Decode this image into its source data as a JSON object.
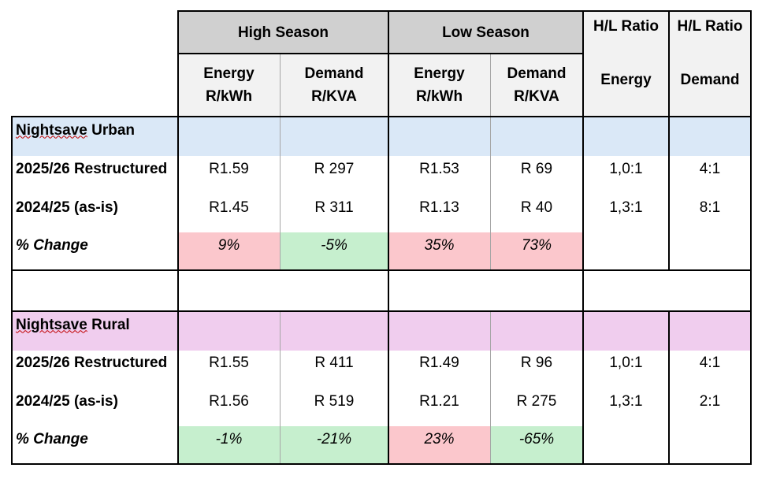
{
  "header": {
    "high_season": "High Season",
    "low_season": "Low Season",
    "hl_ratio_energy_top": "H/L Ratio",
    "hl_ratio_demand_top": "H/L Ratio",
    "energy_line1": "Energy",
    "energy_line2": "R/kWh",
    "demand_line1": "Demand",
    "demand_line2": "R/KVA",
    "ratio_energy": "Energy",
    "ratio_demand": "Demand"
  },
  "sections": [
    {
      "title_a": "Nightsave",
      "title_b": " Urban",
      "rows": [
        {
          "label": "2025/26 Restructured",
          "high_energy": "R1.59",
          "high_demand": "R 297",
          "low_energy": "R1.53",
          "low_demand": "R 69",
          "ratio_energy": "1,0:1",
          "ratio_demand": "4:1"
        },
        {
          "label": "2024/25 (as-is)",
          "high_energy": "R1.45",
          "high_demand": "R 311",
          "low_energy": "R1.13",
          "low_demand": "R 40",
          "ratio_energy": "1,3:1",
          "ratio_demand": "8:1"
        }
      ],
      "change": {
        "label": "% Change",
        "high_energy": "9%",
        "high_demand": "-5%",
        "low_energy": "35%",
        "low_demand": "73%"
      }
    },
    {
      "title_a": "Nightsave",
      "title_b": " Rural",
      "rows": [
        {
          "label": "2025/26 Restructured",
          "high_energy": "R1.55",
          "high_demand": "R 411",
          "low_energy": "R1.49",
          "low_demand": "R 96",
          "ratio_energy": "1,0:1",
          "ratio_demand": "4:1"
        },
        {
          "label": "2024/25 (as-is)",
          "high_energy": "R1.56",
          "high_demand": "R 519",
          "low_energy": "R1.21",
          "low_demand": "R 275",
          "ratio_energy": "1,3:1",
          "ratio_demand": "2:1"
        }
      ],
      "change": {
        "label": "% Change",
        "high_energy": "-1%",
        "high_demand": "-21%",
        "low_energy": "23%",
        "low_demand": "-65%"
      }
    }
  ],
  "colors": {
    "header_grey": "#d0d0d0",
    "header_light": "#f2f2f2",
    "urban_blue": "#dae8f7",
    "rural_pink": "#f0cdee",
    "increase_red": "#fbc7cc",
    "decrease_green": "#c6efce"
  }
}
